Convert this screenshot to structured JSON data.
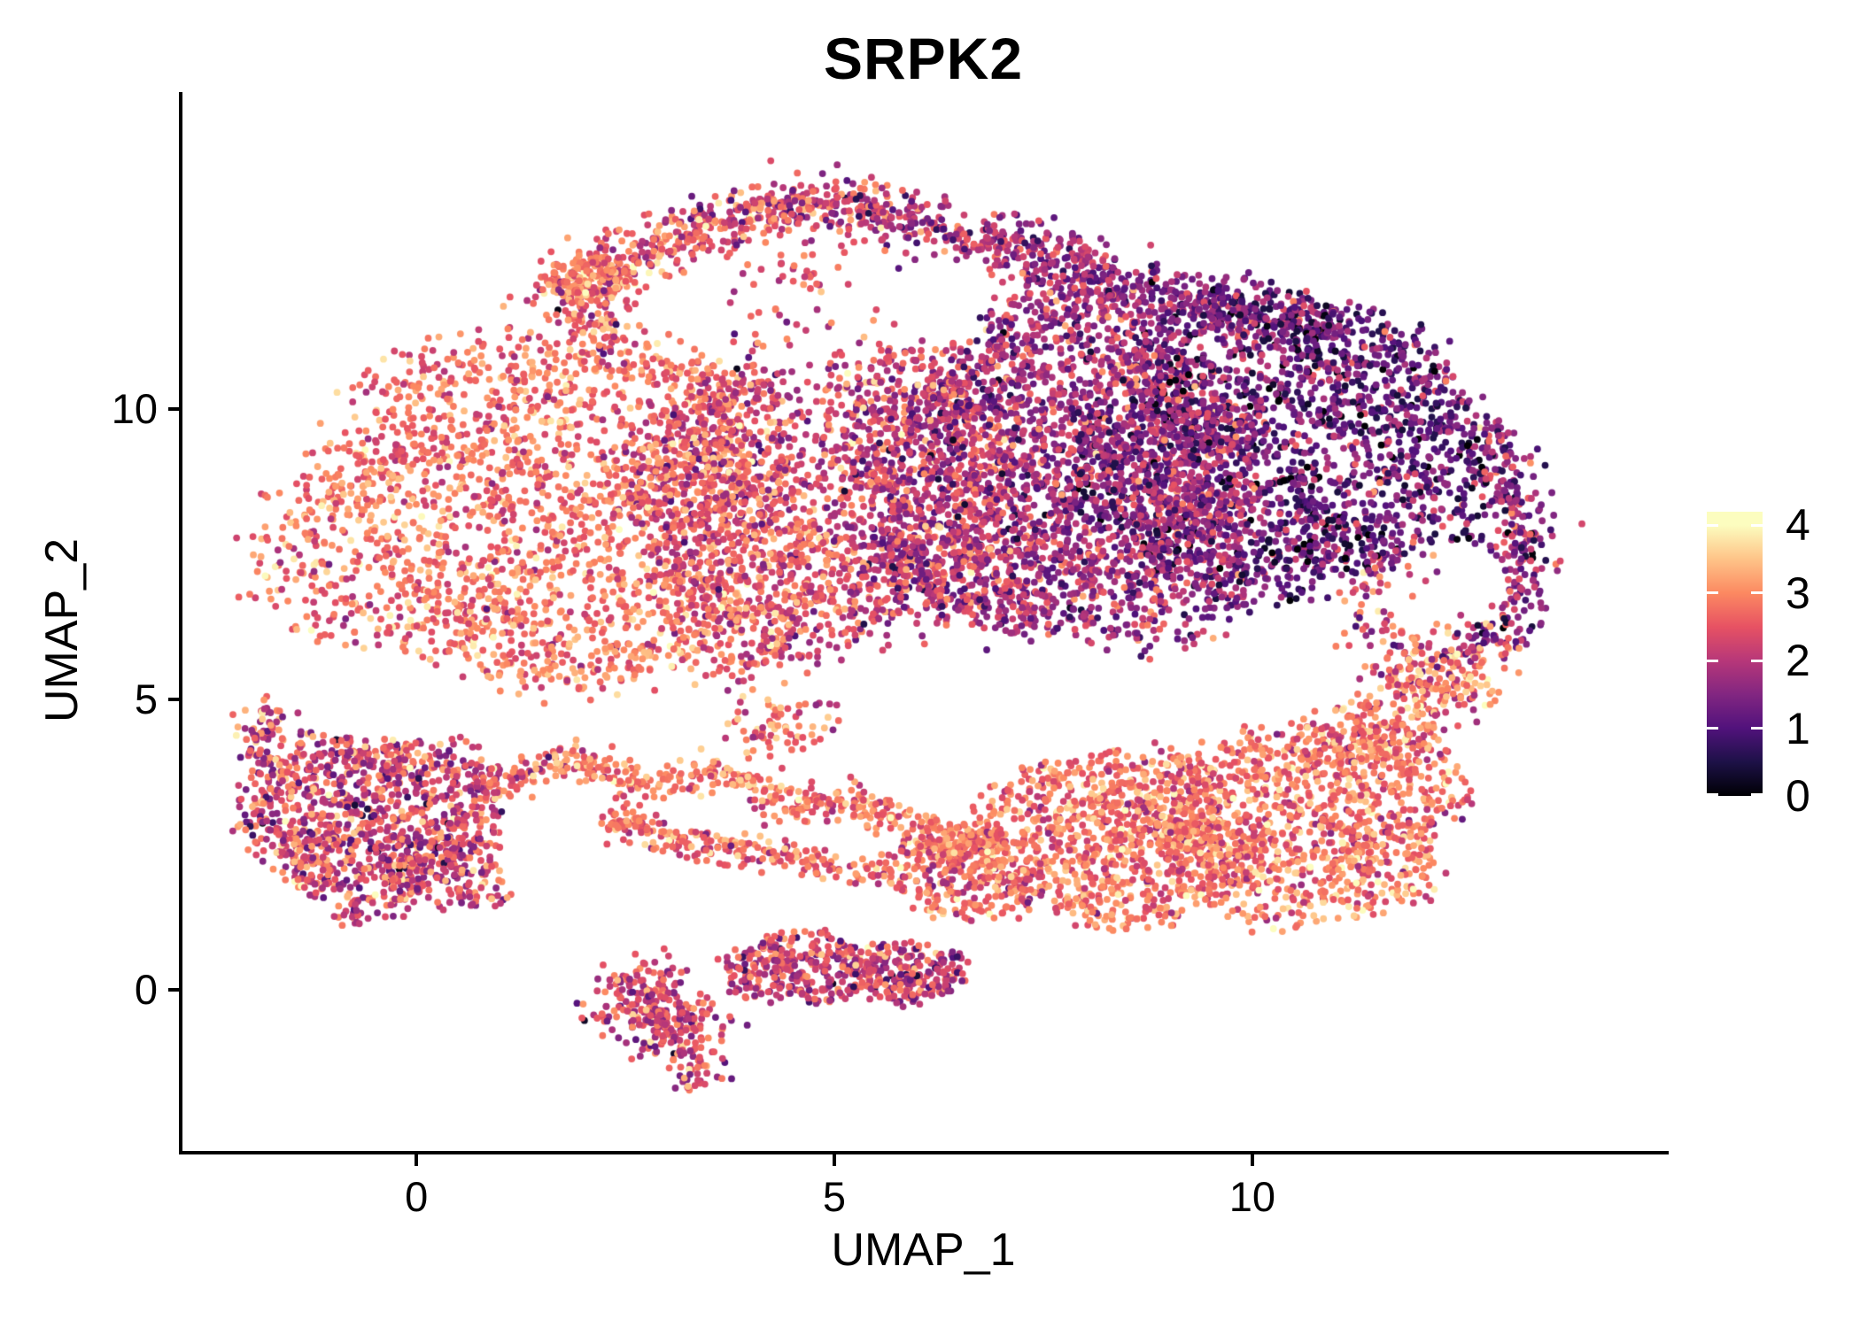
{
  "figure": {
    "title": "SRPK2"
  },
  "axes": {
    "xlabel": "UMAP_1",
    "ylabel": "UMAP_2",
    "x_ticks": [
      {
        "label": "0",
        "value": 0
      },
      {
        "label": "5",
        "value": 5
      },
      {
        "label": "10",
        "value": 10
      }
    ],
    "y_ticks": [
      {
        "label": "0",
        "value": 0
      },
      {
        "label": "5",
        "value": 5
      },
      {
        "label": "10",
        "value": 10
      }
    ]
  },
  "legend": {
    "ticks": [
      {
        "label": "4",
        "value": 4
      },
      {
        "label": "3",
        "value": 3
      },
      {
        "label": "2",
        "value": 2
      },
      {
        "label": "1",
        "value": 1
      },
      {
        "label": "0",
        "value": 0
      }
    ]
  },
  "chart_data": {
    "type": "scatter",
    "title": "SRPK2",
    "xlabel": "UMAP_1",
    "ylabel": "UMAP_2",
    "x_range": [
      -2.81,
      14.94
    ],
    "y_range": [
      -2.81,
      15.44
    ],
    "grid": false,
    "legend_position": "right",
    "point_radius_px": 3.9,
    "seed": 42,
    "color_scale": {
      "name": "magma",
      "value_range": [
        0,
        4.2
      ],
      "label_values": [
        0,
        1,
        2,
        3,
        4
      ],
      "stops": [
        "#000004",
        "#1d1147",
        "#51127c",
        "#822681",
        "#b73779",
        "#e75263",
        "#fc8961",
        "#fec488",
        "#fcfdbf"
      ],
      "stop_value_max": 4
    },
    "clusters": [
      {
        "name": "main-left",
        "kind": "blob",
        "cx": 1.6,
        "cy": 8.2,
        "rx": 3.2,
        "ry": 3.1,
        "n": 2400,
        "expr": [
          2.8,
          0.5
        ]
      },
      {
        "name": "main-center",
        "kind": "blob",
        "cx": 4.9,
        "cy": 8.7,
        "rx": 2.3,
        "ry": 3.3,
        "n": 2000,
        "expr": [
          2.3,
          0.6
        ]
      },
      {
        "name": "main-right",
        "kind": "blob",
        "cx": 7.7,
        "cy": 8.8,
        "rx": 2.3,
        "ry": 3.0,
        "n": 2600,
        "expr": [
          1.8,
          0.6
        ]
      },
      {
        "name": "main-far-right",
        "kind": "blob",
        "cx": 10.4,
        "cy": 9.3,
        "rx": 2.5,
        "ry": 2.6,
        "n": 2200,
        "expr": [
          1.25,
          0.65
        ]
      },
      {
        "name": "arc-left-clump",
        "kind": "blob",
        "cx": 2.05,
        "cy": 12.25,
        "rx": 0.5,
        "ry": 0.38,
        "n": 130,
        "expr": [
          2.9,
          0.45
        ]
      },
      {
        "name": "left-island",
        "kind": "blob",
        "cx": -0.55,
        "cy": 2.95,
        "rx": 1.55,
        "ry": 1.5,
        "n": 1050,
        "expr": [
          2.3,
          0.7
        ]
      },
      {
        "name": "left-island-foot",
        "kind": "blob",
        "cx": 0.35,
        "cy": 2.0,
        "rx": 0.8,
        "ry": 0.65,
        "n": 150,
        "expr": [
          2.4,
          0.65
        ]
      },
      {
        "name": "bottom-right-a",
        "kind": "blob",
        "cx": 8.3,
        "cy": 2.6,
        "rx": 1.7,
        "ry": 1.5,
        "n": 950,
        "expr": [
          2.85,
          0.5
        ]
      },
      {
        "name": "bottom-right-b",
        "kind": "blob",
        "cx": 10.6,
        "cy": 2.9,
        "rx": 1.9,
        "ry": 1.7,
        "n": 1150,
        "expr": [
          2.8,
          0.55
        ]
      },
      {
        "name": "bottom-right-west",
        "kind": "blob",
        "cx": 6.6,
        "cy": 2.0,
        "rx": 1.0,
        "ry": 0.8,
        "n": 280,
        "expr": [
          2.7,
          0.55
        ]
      },
      {
        "name": "right-hole-ring",
        "kind": "blob",
        "cx": 11.9,
        "cy": 6.3,
        "rx": 1.0,
        "ry": 1.1,
        "n": 150,
        "expr": [
          2.2,
          0.8
        ]
      },
      {
        "name": "bottom-island-b",
        "kind": "blob",
        "cx": 4.6,
        "cy": 0.35,
        "rx": 0.95,
        "ry": 0.65,
        "n": 300,
        "expr": [
          2.2,
          0.65
        ]
      },
      {
        "name": "bottom-island-c",
        "kind": "blob",
        "cx": 5.9,
        "cy": 0.3,
        "rx": 0.7,
        "ry": 0.55,
        "n": 210,
        "expr": [
          2.1,
          0.7
        ]
      },
      {
        "name": "top-rim-arc",
        "kind": "path",
        "pts": [
          [
            1.6,
            11.9
          ],
          [
            2.4,
            12.5
          ],
          [
            3.4,
            13.1
          ],
          [
            4.4,
            13.5
          ],
          [
            5.4,
            13.5
          ],
          [
            6.4,
            13.1
          ],
          [
            7.3,
            12.7
          ],
          [
            8.2,
            12.3
          ],
          [
            9.2,
            11.8
          ],
          [
            10.2,
            11.5
          ],
          [
            10.9,
            11.3
          ]
        ],
        "w": 0.26,
        "n": 1250,
        "expr": [
          2.7,
          0.6
        ],
        "expr_end": [
          1.3,
          0.6
        ]
      },
      {
        "name": "arc-under-trail",
        "kind": "path",
        "pts": [
          [
            1.9,
            12.0
          ],
          [
            2.2,
            11.3
          ],
          [
            2.5,
            10.9
          ]
        ],
        "w": 0.28,
        "n": 80,
        "expr": [
          2.6,
          0.7
        ]
      },
      {
        "name": "right-edge-band",
        "kind": "path",
        "pts": [
          [
            12.9,
            9.7
          ],
          [
            13.15,
            8.6
          ],
          [
            13.25,
            7.4
          ],
          [
            13.05,
            6.3
          ],
          [
            12.75,
            5.9
          ]
        ],
        "w": 0.2,
        "n": 260,
        "expr": [
          1.7,
          0.75
        ]
      },
      {
        "name": "right-connector",
        "kind": "path",
        "pts": [
          [
            11.2,
            4.15
          ],
          [
            11.9,
            4.9
          ],
          [
            12.55,
            5.75
          ]
        ],
        "w": 0.32,
        "n": 330,
        "expr": [
          2.8,
          0.55
        ]
      },
      {
        "name": "chain-upper",
        "kind": "path",
        "pts": [
          [
            1.7,
            4.05
          ],
          [
            2.7,
            3.55
          ],
          [
            3.6,
            3.8
          ],
          [
            4.5,
            3.1
          ],
          [
            5.3,
            3.3
          ],
          [
            6.1,
            2.7
          ],
          [
            6.9,
            2.45
          ]
        ],
        "w": 0.16,
        "n": 420,
        "expr": [
          2.9,
          0.45
        ]
      },
      {
        "name": "chain-lower",
        "kind": "path",
        "pts": [
          [
            2.3,
            3.0
          ],
          [
            3.3,
            2.5
          ],
          [
            4.5,
            2.3
          ],
          [
            5.6,
            1.95
          ]
        ],
        "w": 0.14,
        "n": 230,
        "expr": [
          2.75,
          0.5
        ]
      },
      {
        "name": "island-bridge",
        "kind": "path",
        "pts": [
          [
            0.85,
            3.35
          ],
          [
            1.6,
            3.9
          ]
        ],
        "w": 0.15,
        "n": 70,
        "expr": [
          2.6,
          0.6
        ]
      },
      {
        "name": "left-hook",
        "kind": "path",
        "pts": [
          [
            -1.7,
            3.7
          ],
          [
            -1.95,
            4.3
          ],
          [
            -1.75,
            4.9
          ]
        ],
        "w": 0.15,
        "n": 75,
        "expr": [
          2.35,
          0.7
        ]
      },
      {
        "name": "bottom-island-a",
        "kind": "path",
        "pts": [
          [
            2.55,
            0.1
          ],
          [
            2.9,
            -0.3
          ],
          [
            3.2,
            -0.9
          ]
        ],
        "w": 0.3,
        "n": 290,
        "expr": [
          2.3,
          0.6
        ]
      },
      {
        "name": "bottom-island-tail",
        "kind": "path",
        "pts": [
          [
            3.25,
            -1.0
          ],
          [
            3.35,
            -1.6
          ]
        ],
        "w": 0.15,
        "n": 45,
        "expr": [
          2.3,
          0.6
        ]
      },
      {
        "name": "mid-bridge",
        "kind": "path",
        "pts": [
          [
            4.2,
            4.9
          ],
          [
            4.5,
            4.1
          ]
        ],
        "w": 0.35,
        "n": 70,
        "expr": [
          2.7,
          0.6
        ]
      }
    ],
    "holes": [
      {
        "cx": 12.35,
        "cy": 6.95,
        "rx": 0.72,
        "ry": 0.78,
        "p": 0.92
      },
      {
        "cx": 6.2,
        "cy": 5.85,
        "rx": 0.95,
        "ry": 0.7,
        "p": 0.75
      },
      {
        "cx": 4.3,
        "cy": 11.45,
        "rx": 1.9,
        "ry": 0.7,
        "p": 0.75
      }
    ]
  }
}
